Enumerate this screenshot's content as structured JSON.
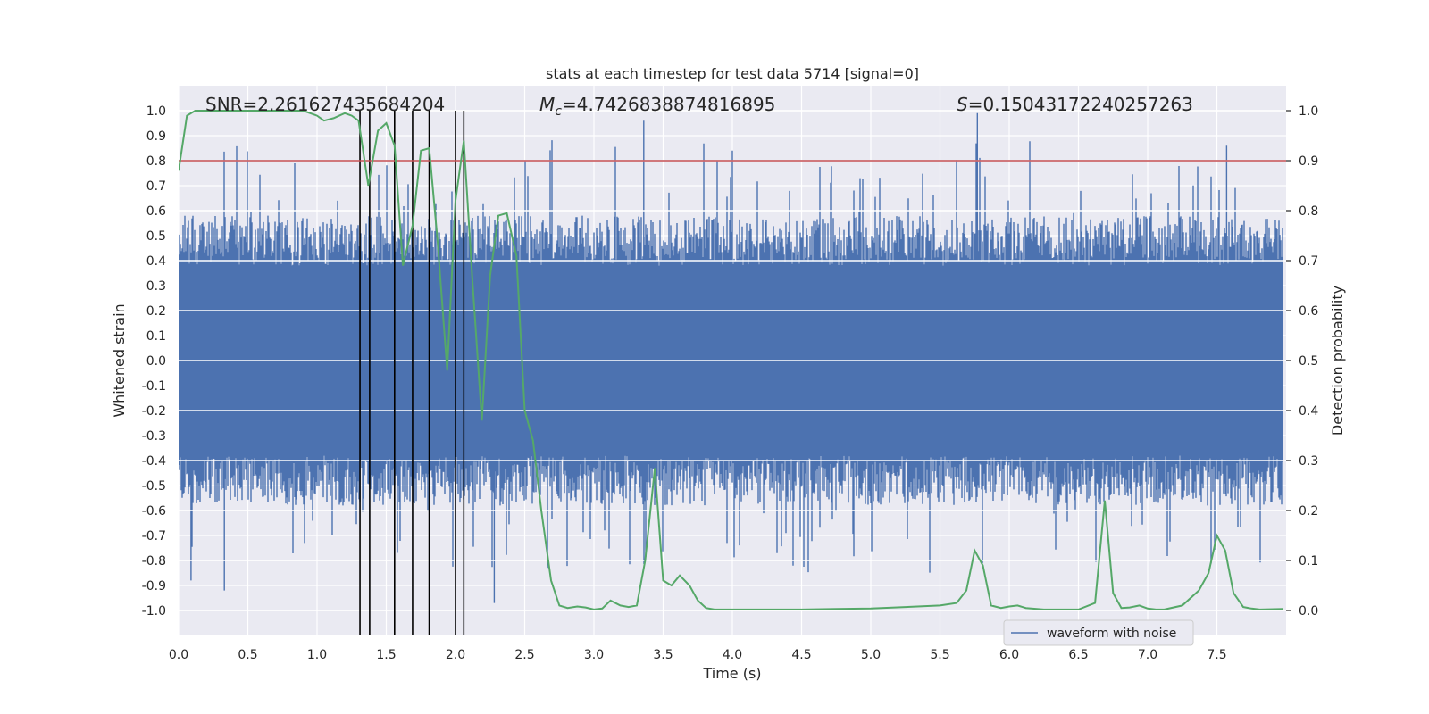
{
  "chart_data": {
    "type": "line",
    "title": "stats at each timestep for test data 5714 [signal=0]",
    "xlabel": "Time (s)",
    "ylabel_left": "Whitened strain",
    "ylabel_right": "Detection probability",
    "xlim": [
      0.0,
      8.0
    ],
    "ylim_left": [
      -1.1,
      1.1
    ],
    "ylim_right": [
      -0.05,
      1.05
    ],
    "x_ticks": [
      0.0,
      0.5,
      1.0,
      1.5,
      2.0,
      2.5,
      3.0,
      3.5,
      4.0,
      4.5,
      5.0,
      5.5,
      6.0,
      6.5,
      7.0,
      7.5
    ],
    "x_tick_labels": [
      "0.0",
      "0.5",
      "1.0",
      "1.5",
      "2.0",
      "2.5",
      "3.0",
      "3.5",
      "4.0",
      "4.5",
      "5.0",
      "5.5",
      "6.0",
      "6.5",
      "7.0",
      "7.5"
    ],
    "y_left_ticks": [
      1.0,
      0.9,
      0.8,
      0.7,
      0.6,
      0.5,
      0.4,
      0.3,
      0.2,
      0.1,
      0.0,
      -0.1,
      -0.2,
      -0.3,
      -0.4,
      -0.5,
      -0.6,
      -0.7,
      -0.8,
      -0.9,
      -1.0
    ],
    "y_left_tick_labels": [
      "1.0",
      "0.9",
      "0.8",
      "0.7",
      "0.6",
      "0.5",
      "0.4",
      "0.3",
      "0.2",
      "0.1",
      "0.0",
      "-0.1",
      "-0.2",
      "-0.3",
      "-0.4",
      "-0.5",
      "-0.6",
      "-0.7",
      "-0.8",
      "-0.9",
      "-1.0"
    ],
    "y_right_ticks": [
      1.0,
      0.9,
      0.8,
      0.7,
      0.6,
      0.5,
      0.4,
      0.3,
      0.2,
      0.1,
      0.0
    ],
    "y_right_tick_labels": [
      "1.0",
      "0.9",
      "0.8",
      "0.7",
      "0.6",
      "0.5",
      "0.4",
      "0.3",
      "0.2",
      "0.1",
      "0.0"
    ],
    "annotations": {
      "snr": "SNR=2.261627435684204",
      "mc_symbol": "M",
      "mc_subscript": "c",
      "mc_value": "=4.7426838874816895",
      "s_symbol": "S",
      "s_value": "=0.15043172240257263"
    },
    "threshold": {
      "value": 0.9,
      "axis": "right",
      "color": "#c44e52"
    },
    "vertical_markers": {
      "x": [
        1.31,
        1.38,
        1.56,
        1.69,
        1.81,
        2.0,
        2.06
      ],
      "ymin": -0.05,
      "ymax": 1.0,
      "color": "#000000"
    },
    "series": [
      {
        "name": "waveform with noise",
        "axis": "left",
        "color": "#4c72b0",
        "kind": "noise",
        "t_start": 0.0,
        "t_end": 7.98,
        "core_amplitude": 0.4,
        "peak_amplitude": 0.97,
        "min_value": -0.97
      },
      {
        "name": "detection probability",
        "axis": "right",
        "color": "#55a868",
        "x": [
          0.0,
          0.06,
          0.12,
          0.25,
          0.5,
          0.75,
          0.9,
          1.0,
          1.05,
          1.12,
          1.2,
          1.25,
          1.3,
          1.37,
          1.44,
          1.5,
          1.56,
          1.62,
          1.69,
          1.75,
          1.81,
          1.87,
          1.94,
          2.0,
          2.06,
          2.12,
          2.19,
          2.25,
          2.31,
          2.37,
          2.44,
          2.5,
          2.56,
          2.62,
          2.69,
          2.75,
          2.81,
          2.88,
          2.94,
          3.0,
          3.06,
          3.12,
          3.19,
          3.25,
          3.31,
          3.37,
          3.44,
          3.5,
          3.56,
          3.62,
          3.69,
          3.75,
          3.81,
          3.87,
          3.94,
          4.0,
          4.25,
          4.5,
          4.75,
          5.0,
          5.25,
          5.5,
          5.62,
          5.69,
          5.75,
          5.81,
          5.87,
          5.94,
          6.0,
          6.06,
          6.12,
          6.25,
          6.5,
          6.62,
          6.69,
          6.75,
          6.81,
          6.87,
          6.94,
          7.0,
          7.06,
          7.12,
          7.25,
          7.37,
          7.44,
          7.5,
          7.56,
          7.62,
          7.69,
          7.75,
          7.81,
          7.98
        ],
        "values": [
          0.88,
          0.99,
          1.0,
          1.0,
          1.0,
          1.0,
          1.0,
          0.99,
          0.98,
          0.985,
          0.995,
          0.99,
          0.98,
          0.85,
          0.96,
          0.975,
          0.93,
          0.69,
          0.77,
          0.92,
          0.925,
          0.74,
          0.48,
          0.82,
          0.94,
          0.67,
          0.38,
          0.67,
          0.79,
          0.795,
          0.71,
          0.4,
          0.34,
          0.2,
          0.06,
          0.01,
          0.005,
          0.008,
          0.006,
          0.002,
          0.004,
          0.02,
          0.01,
          0.007,
          0.01,
          0.1,
          0.285,
          0.06,
          0.05,
          0.07,
          0.05,
          0.02,
          0.005,
          0.002,
          0.002,
          0.002,
          0.002,
          0.002,
          0.003,
          0.004,
          0.007,
          0.01,
          0.015,
          0.04,
          0.12,
          0.09,
          0.01,
          0.005,
          0.008,
          0.01,
          0.005,
          0.002,
          0.002,
          0.015,
          0.22,
          0.035,
          0.005,
          0.006,
          0.01,
          0.004,
          0.002,
          0.002,
          0.01,
          0.04,
          0.075,
          0.15,
          0.12,
          0.035,
          0.007,
          0.004,
          0.002,
          0.003
        ]
      }
    ],
    "legend": {
      "entries": [
        "waveform with noise"
      ],
      "placement": "lower-right"
    },
    "grid": true,
    "background": "#eaeaf2"
  }
}
